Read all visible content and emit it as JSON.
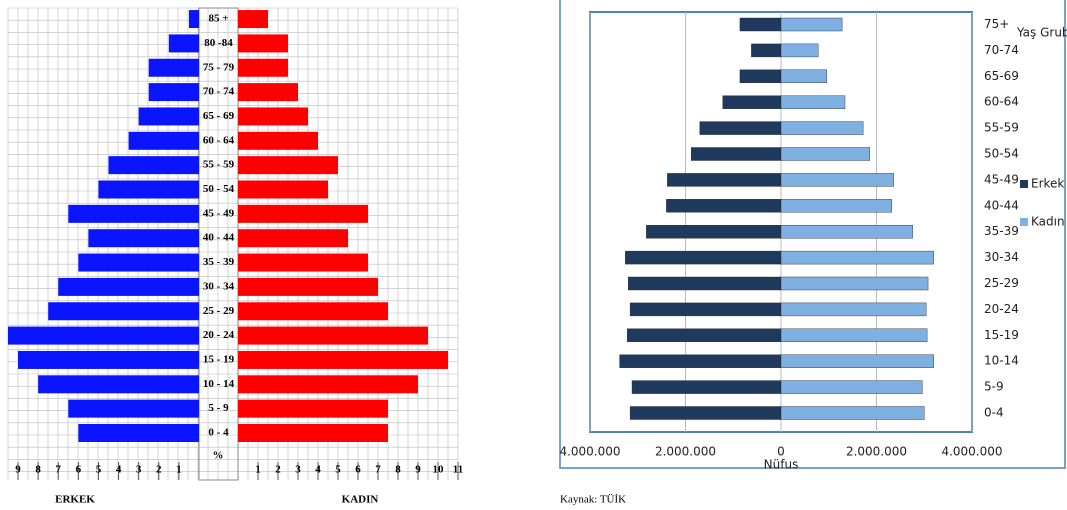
{
  "chart_data": [
    {
      "type": "bar",
      "orientation": "horizontal",
      "categories": [
        "0 - 4",
        "5 - 9",
        "10 - 14",
        "15 - 19",
        "20 - 24",
        "25 - 29",
        "30 - 34",
        "35 - 39",
        "40 - 44",
        "45 - 49",
        "50 - 54",
        "55 - 59",
        "60 - 64",
        "65 - 69",
        "70 - 74",
        "75 - 79",
        "80 -84",
        "85 +"
      ],
      "series": [
        {
          "color": "#0a14ff",
          "values": [
            -6,
            -6.5,
            -8,
            -9,
            -9.5,
            -7.5,
            -7,
            -6,
            -5.5,
            -6.5,
            -5,
            -4.5,
            -3.5,
            -3,
            -2.5,
            -2.5,
            -1.5,
            -0.5
          ]
        },
        {
          "color": "#ff0000",
          "values": [
            7.5,
            7.5,
            9,
            10.5,
            9.5,
            7.5,
            7,
            6.5,
            5.5,
            6.5,
            4.5,
            5,
            4,
            3.5,
            3,
            2.5,
            2.5,
            1.5
          ]
        }
      ],
      "xlabel": "%",
      "side_labels": [
        "ERKEK",
        "KADIN"
      ],
      "xlim": [
        -9.5,
        11
      ],
      "xticks": [
        {
          "value": -9,
          "label": "9"
        },
        {
          "value": -8,
          "label": "8"
        },
        {
          "value": -7,
          "label": "7"
        },
        {
          "value": -6,
          "label": "6"
        },
        {
          "value": -5,
          "label": "5"
        },
        {
          "value": -4,
          "label": "4"
        },
        {
          "value": -3,
          "label": "3"
        },
        {
          "value": -2,
          "label": "2"
        },
        {
          "value": -1,
          "label": "1"
        },
        1,
        2,
        3,
        4,
        5,
        6,
        7,
        8,
        9,
        10,
        11
      ],
      "grid": true
    },
    {
      "type": "bar",
      "orientation": "horizontal",
      "categories": [
        "0-4",
        "5-9",
        "10-14",
        "15-19",
        "20-24",
        "25-29",
        "30-34",
        "35-39",
        "40-44",
        "45-49",
        "50-54",
        "55-59",
        "60-64",
        "65-69",
        "70-74",
        "75+"
      ],
      "series": [
        {
          "name": "Erkek",
          "color": "#1f3a5c",
          "values": [
            -3160000,
            -3120000,
            -3380000,
            -3220000,
            -3160000,
            -3200000,
            -3260000,
            -2820000,
            -2400000,
            -2380000,
            -1880000,
            -1700000,
            -1220000,
            -860000,
            -620000,
            -860000
          ]
        },
        {
          "name": "Kadın",
          "color": "#7fb0e2",
          "values": [
            3000000,
            2960000,
            3200000,
            3060000,
            3040000,
            3080000,
            3200000,
            2760000,
            2320000,
            2360000,
            1860000,
            1720000,
            1340000,
            960000,
            780000,
            1280000
          ]
        }
      ],
      "xlabel": "Nüfus",
      "ylabel": "Yaş Grubu",
      "source": "Kaynak: TÜİK",
      "xlim": [
        -4000000,
        4000000
      ],
      "xticks": [
        {
          "value": -4000000,
          "label": "4.000.000"
        },
        {
          "value": -2000000,
          "label": "2.000.000"
        },
        0,
        {
          "value": 2000000,
          "label": "2.000.000"
        },
        {
          "value": 4000000,
          "label": "4.000.000"
        }
      ],
      "grid": true,
      "legend": "right"
    }
  ]
}
